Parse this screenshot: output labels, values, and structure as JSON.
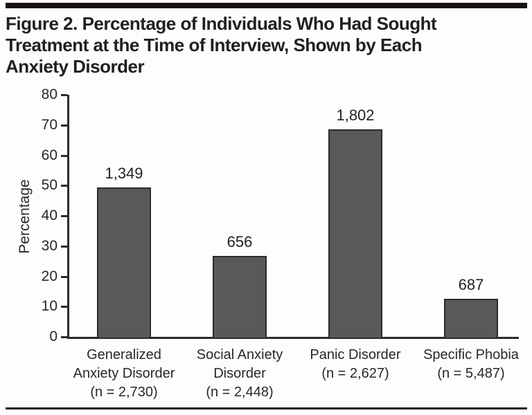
{
  "figure": {
    "title_lines": [
      "Figure 2. Percentage of Individuals Who Had Sought",
      "Treatment at the Time of Interview, Shown by Each",
      "Anxiety Disorder"
    ]
  },
  "chart_data": {
    "type": "bar",
    "title": "Figure 2. Percentage of Individuals Who Had Sought Treatment at the Time of Interview, Shown by Each Anxiety Disorder",
    "xlabel": "",
    "ylabel": "Percentage",
    "ylim": [
      0,
      80
    ],
    "yticks": [
      80,
      70,
      60,
      50,
      40,
      30,
      20,
      10,
      0
    ],
    "grid": false,
    "legend": false,
    "bars": [
      {
        "category": "Generalized Anxiety Disorder (n = 2,730)",
        "category_lines": [
          "Generalized",
          "Anxiety Disorder",
          "(n = 2,730)"
        ],
        "n_label": "n = 2,730",
        "value_pct": 49.4,
        "count_label": "1,349"
      },
      {
        "category": "Social Anxiety Disorder (n = 2,448)",
        "category_lines": [
          "Social Anxiety",
          "Disorder",
          "(n = 2,448)"
        ],
        "n_label": "n = 2,448",
        "value_pct": 26.8,
        "count_label": "656"
      },
      {
        "category": "Panic Disorder (n = 2,627)",
        "category_lines": [
          "Panic Disorder",
          "(n = 2,627)"
        ],
        "n_label": "n = 2,627",
        "value_pct": 68.6,
        "count_label": "1,802"
      },
      {
        "category": "Specific Phobia (n = 5,487)",
        "category_lines": [
          "Specific Phobia",
          "(n = 5,487)"
        ],
        "n_label": "n = 5,487",
        "value_pct": 12.5,
        "count_label": "687"
      }
    ],
    "colors": {
      "bar_fill": "#595959",
      "bar_border": "#2b2b2b",
      "axis": "#2b2b2b",
      "text": "#231f20",
      "rule": "#171314"
    }
  }
}
